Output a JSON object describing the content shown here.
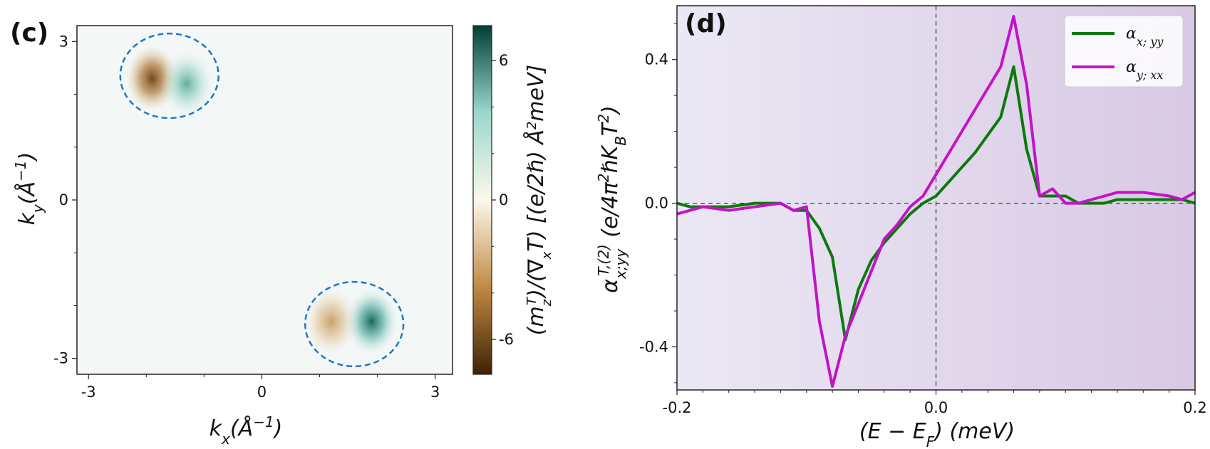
{
  "chart_data": [
    {
      "panel": "(c)",
      "type": "heatmap",
      "xlabel": "k_x(Å^{-1})",
      "ylabel": "k_y(Å^{-1})",
      "xlim": [
        -3.2,
        3.3
      ],
      "ylim": [
        -3.3,
        3.3
      ],
      "xticks": [
        -3,
        0,
        3
      ],
      "yticks": [
        3,
        0,
        -3
      ],
      "colorbar": {
        "label": "(m_z^T)/(∇_xT)  [(e/2ℏ) Å²meV]",
        "range": [
          -7.5,
          7.5
        ],
        "ticks": [
          6,
          0,
          -6
        ],
        "colors": [
          "#3f2205",
          "#c08a45",
          "#fdf8ec",
          "#9ad8cc",
          "#013f36"
        ]
      },
      "features": [
        {
          "name": "negative lobe 1",
          "kx": -1.9,
          "ky": 2.3,
          "value": -7
        },
        {
          "name": "positive lobe 1",
          "kx": -1.3,
          "ky": 2.2,
          "value": 5
        },
        {
          "name": "negative lobe 2",
          "kx": 1.2,
          "ky": -2.3,
          "value": -4
        },
        {
          "name": "positive lobe 2",
          "kx": 1.9,
          "ky": -2.3,
          "value": 7
        }
      ],
      "circles": [
        {
          "kx": -1.6,
          "ky": 2.35,
          "rx": 0.85,
          "ry": 0.8
        },
        {
          "kx": 1.6,
          "ky": -2.35,
          "rx": 0.85,
          "ry": 0.8
        }
      ]
    },
    {
      "panel": "(d)",
      "type": "line",
      "xlabel": "(E − E_F) (meV)",
      "ylabel": "α^{T,(2)}_{x;yy} (e/4π²ℏK_BT²)",
      "xlim": [
        -0.2,
        0.2
      ],
      "ylim": [
        -0.52,
        0.55
      ],
      "xticks": [
        -0.2,
        0.0,
        0.2
      ],
      "yticks": [
        0.4,
        0.0,
        -0.4
      ],
      "xtick_labels": [
        "-0.2",
        "0.0",
        "0.2"
      ],
      "ytick_labels": [
        "0.4",
        "0.0",
        "-0.4"
      ],
      "legend_position": "top-right",
      "series": [
        {
          "name": "α_{x; yy}",
          "color": "#0b7a0b",
          "x": [
            -0.2,
            -0.19,
            -0.18,
            -0.16,
            -0.14,
            -0.12,
            -0.11,
            -0.1,
            -0.09,
            -0.08,
            -0.07,
            -0.06,
            -0.05,
            -0.04,
            -0.03,
            -0.02,
            -0.01,
            0.0,
            0.01,
            0.02,
            0.03,
            0.04,
            0.05,
            0.06,
            0.07,
            0.08,
            0.09,
            0.1,
            0.11,
            0.12,
            0.13,
            0.14,
            0.16,
            0.18,
            0.19,
            0.2
          ],
          "y": [
            0.0,
            -0.01,
            -0.01,
            -0.01,
            0.0,
            0.0,
            -0.02,
            -0.02,
            -0.07,
            -0.15,
            -0.38,
            -0.24,
            -0.16,
            -0.11,
            -0.07,
            -0.03,
            0.0,
            0.02,
            0.06,
            0.1,
            0.14,
            0.19,
            0.24,
            0.38,
            0.15,
            0.02,
            0.02,
            0.02,
            0.0,
            0.0,
            0.0,
            0.01,
            0.01,
            0.01,
            0.01,
            0.0
          ]
        },
        {
          "name": "α_{y; xx}",
          "color": "#c214c6",
          "x": [
            -0.2,
            -0.19,
            -0.18,
            -0.16,
            -0.14,
            -0.12,
            -0.11,
            -0.1,
            -0.09,
            -0.08,
            -0.07,
            -0.06,
            -0.05,
            -0.04,
            -0.03,
            -0.02,
            -0.01,
            0.0,
            0.01,
            0.02,
            0.03,
            0.04,
            0.05,
            0.06,
            0.07,
            0.08,
            0.09,
            0.1,
            0.11,
            0.12,
            0.13,
            0.14,
            0.16,
            0.18,
            0.19,
            0.2
          ],
          "y": [
            -0.03,
            -0.02,
            -0.01,
            -0.02,
            -0.01,
            0.0,
            -0.02,
            -0.01,
            -0.33,
            -0.51,
            -0.37,
            -0.28,
            -0.19,
            -0.1,
            -0.06,
            -0.01,
            0.02,
            0.08,
            0.14,
            0.2,
            0.26,
            0.32,
            0.38,
            0.52,
            0.33,
            0.02,
            0.04,
            0.0,
            0.0,
            0.01,
            0.02,
            0.03,
            0.03,
            0.02,
            0.01,
            0.03
          ]
        }
      ]
    }
  ]
}
